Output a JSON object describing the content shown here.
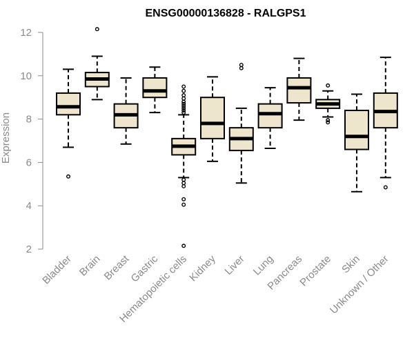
{
  "chart_data": {
    "type": "boxplot",
    "title": "ENSG00000136828 - RALGPS1",
    "xlabel": "",
    "ylabel": "Expression",
    "ylim": [
      2,
      12
    ],
    "yticks": [
      2,
      4,
      6,
      8,
      10,
      12
    ],
    "grid": false,
    "colors": {
      "box_fill": "#ede6cc",
      "stroke": "#000000",
      "axis": "#8a8a8a"
    },
    "categories": [
      "Bladder",
      "Brain",
      "Breast",
      "Gastric",
      "Hematopoietic cells",
      "Kidney",
      "Liver",
      "Lung",
      "Pancreas",
      "Prostate",
      "Skin",
      "Unknown / Other"
    ],
    "boxes": [
      {
        "min": 6.7,
        "q1": 8.2,
        "median": 8.57,
        "q3": 9.2,
        "max": 10.3,
        "outliers": [
          5.35
        ]
      },
      {
        "min": 8.9,
        "q1": 9.5,
        "median": 9.85,
        "q3": 10.15,
        "max": 10.9,
        "outliers": [
          12.15
        ]
      },
      {
        "min": 6.85,
        "q1": 7.6,
        "median": 8.2,
        "q3": 8.7,
        "max": 9.9,
        "outliers": []
      },
      {
        "min": 8.3,
        "q1": 9.0,
        "median": 9.3,
        "q3": 9.9,
        "max": 10.4,
        "outliers": []
      },
      {
        "min": 5.3,
        "q1": 6.35,
        "median": 6.75,
        "q3": 7.1,
        "max": 8.2,
        "outliers": [
          2.15,
          4.05,
          4.3,
          4.9,
          5.05,
          5.2,
          8.3,
          8.4,
          8.5,
          8.6,
          8.7,
          8.8,
          8.95,
          9.1,
          9.3,
          9.5
        ]
      },
      {
        "min": 6.05,
        "q1": 7.1,
        "median": 7.8,
        "q3": 9.0,
        "max": 9.95,
        "outliers": []
      },
      {
        "min": 5.05,
        "q1": 6.55,
        "median": 7.1,
        "q3": 7.6,
        "max": 8.5,
        "outliers": [
          10.35,
          10.5
        ]
      },
      {
        "min": 6.65,
        "q1": 7.6,
        "median": 8.25,
        "q3": 8.7,
        "max": 9.45,
        "outliers": []
      },
      {
        "min": 7.95,
        "q1": 8.75,
        "median": 9.45,
        "q3": 9.9,
        "max": 10.8,
        "outliers": []
      },
      {
        "min": 8.1,
        "q1": 8.5,
        "median": 8.7,
        "q3": 8.9,
        "max": 9.3,
        "outliers": [
          7.85,
          7.95,
          9.55
        ]
      },
      {
        "min": 4.65,
        "q1": 6.6,
        "median": 7.2,
        "q3": 8.4,
        "max": 9.15,
        "outliers": []
      },
      {
        "min": 5.3,
        "q1": 7.6,
        "median": 8.35,
        "q3": 9.2,
        "max": 10.85,
        "outliers": [
          4.85
        ]
      }
    ]
  }
}
